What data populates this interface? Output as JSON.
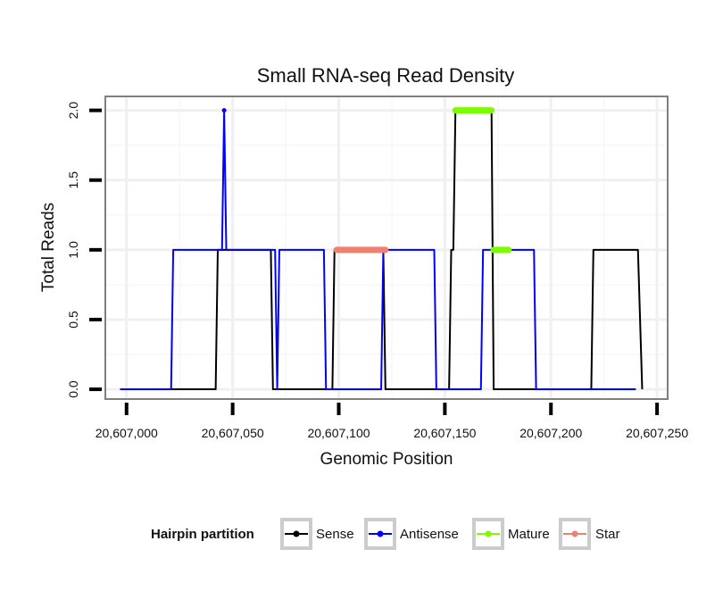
{
  "chart_data": {
    "type": "line",
    "title": "Small RNA-seq Read Density",
    "xlabel": "Genomic Position",
    "ylabel": "Total Reads",
    "xlim": [
      20606990,
      20607255
    ],
    "ylim": [
      -0.07,
      2.1
    ],
    "x_ticks": [
      20607000,
      20607050,
      20607100,
      20607150,
      20607200,
      20607250
    ],
    "x_tick_labels": [
      "20,607,000",
      "20,607,050",
      "20,607,100",
      "20,607,150",
      "20,607,200",
      "20,607,250"
    ],
    "y_ticks": [
      0,
      0.5,
      1,
      1.5,
      2
    ],
    "y_tick_labels": [
      "0.0",
      "0.5",
      "1.0",
      "1.5",
      "2.0"
    ],
    "grid": true,
    "legend": {
      "title": "Hairpin partition",
      "position": "bottom",
      "entries": [
        {
          "name": "Sense",
          "color": "#000000"
        },
        {
          "name": "Antisense",
          "color": "#0000ff"
        },
        {
          "name": "Mature",
          "color": "#7cfc00"
        },
        {
          "name": "Star",
          "color": "#f08070"
        }
      ]
    },
    "series": [
      {
        "name": "Sense",
        "color": "#000000",
        "kind": "line",
        "x": [
          20606997,
          20607042,
          20607043,
          20607068,
          20607069,
          20607097,
          20607098,
          20607121,
          20607122,
          20607152,
          20607153,
          20607154,
          20607155,
          20607172,
          20607173,
          20607196,
          20607219,
          20607220,
          20607241,
          20607243
        ],
        "y": [
          0,
          0,
          1,
          1,
          0,
          0,
          1,
          1,
          0,
          0,
          1,
          1,
          2,
          2,
          0,
          0,
          0,
          1,
          1,
          0
        ]
      },
      {
        "name": "Antisense",
        "color": "#0000ff",
        "kind": "line",
        "x": [
          20606997,
          20607021,
          20607022,
          20607045,
          20607046,
          20607047,
          20607070,
          20607071,
          20607072,
          20607093,
          20607094,
          20607120,
          20607121,
          20607145,
          20607146,
          20607167,
          20607168,
          20607192,
          20607193,
          20607240
        ],
        "y": [
          0,
          0,
          1,
          1,
          2,
          1,
          1,
          0,
          1,
          1,
          0,
          0,
          1,
          1,
          0,
          0,
          1,
          1,
          0,
          0
        ]
      },
      {
        "name": "Mature",
        "color": "#7cfc00",
        "kind": "segments",
        "segments": [
          {
            "x": [
              20607155,
              20607172
            ],
            "y": 2
          },
          {
            "x": [
              20607173,
              20607180
            ],
            "y": 1
          }
        ]
      },
      {
        "name": "Star",
        "color": "#f08070",
        "kind": "segments",
        "segments": [
          {
            "x": [
              20607099,
              20607122
            ],
            "y": 1
          }
        ]
      }
    ]
  }
}
